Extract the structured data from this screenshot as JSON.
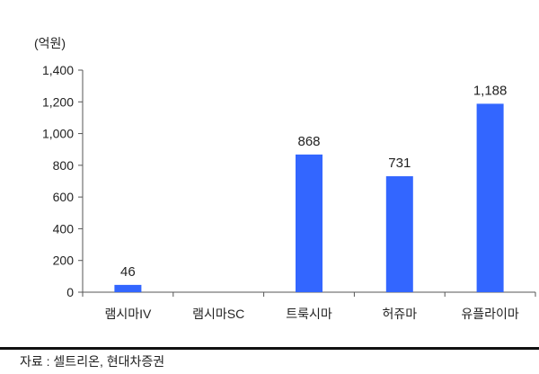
{
  "chart_data": {
    "type": "bar",
    "unit_label": "(억원)",
    "categories": [
      "램시마IV",
      "램시마SC",
      "트룩시마",
      "허쥬마",
      "유플라이마"
    ],
    "values": [
      46,
      null,
      868,
      731,
      1188
    ],
    "data_labels": [
      "46",
      "",
      "868",
      "731",
      "1,188"
    ],
    "ylim": [
      0,
      1400
    ],
    "yticks": [
      0,
      200,
      400,
      600,
      800,
      1000,
      1200,
      1400
    ],
    "ytick_labels": [
      "0",
      "200",
      "400",
      "600",
      "800",
      "1,000",
      "1,200",
      "1,400"
    ],
    "grid": false,
    "bar_color": "#3366ff"
  },
  "source": "자료 : 셀트리온, 현대차증권"
}
